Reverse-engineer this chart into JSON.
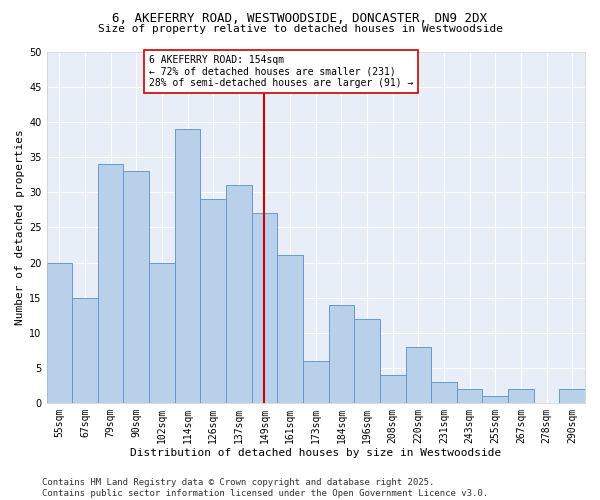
{
  "title1": "6, AKEFERRY ROAD, WESTWOODSIDE, DONCASTER, DN9 2DX",
  "title2": "Size of property relative to detached houses in Westwoodside",
  "xlabel": "Distribution of detached houses by size in Westwoodside",
  "ylabel": "Number of detached properties",
  "categories": [
    "55sqm",
    "67sqm",
    "79sqm",
    "90sqm",
    "102sqm",
    "114sqm",
    "126sqm",
    "137sqm",
    "149sqm",
    "161sqm",
    "173sqm",
    "184sqm",
    "196sqm",
    "208sqm",
    "220sqm",
    "231sqm",
    "243sqm",
    "255sqm",
    "267sqm",
    "278sqm",
    "290sqm"
  ],
  "values": [
    20,
    15,
    34,
    33,
    20,
    39,
    29,
    31,
    27,
    21,
    6,
    14,
    12,
    4,
    8,
    3,
    2,
    1,
    2,
    0,
    2
  ],
  "bar_color": "#b8d0ea",
  "bar_edge_color": "#6699cc",
  "vline_index": 8,
  "vline_color": "#cc0000",
  "annotation_text": "6 AKEFERRY ROAD: 154sqm\n← 72% of detached houses are smaller (231)\n28% of semi-detached houses are larger (91) →",
  "annotation_box_color": "#ffffff",
  "annotation_box_edge": "#cc0000",
  "ylim": [
    0,
    50
  ],
  "yticks": [
    0,
    5,
    10,
    15,
    20,
    25,
    30,
    35,
    40,
    45,
    50
  ],
  "footer": "Contains HM Land Registry data © Crown copyright and database right 2025.\nContains public sector information licensed under the Open Government Licence v3.0.",
  "fig_background": "#ffffff",
  "plot_background": "#e8eef8",
  "grid_color": "#ffffff",
  "title_fontsize": 9,
  "subtitle_fontsize": 8,
  "axis_label_fontsize": 8,
  "tick_fontsize": 7,
  "annotation_fontsize": 7,
  "footer_fontsize": 6.5
}
